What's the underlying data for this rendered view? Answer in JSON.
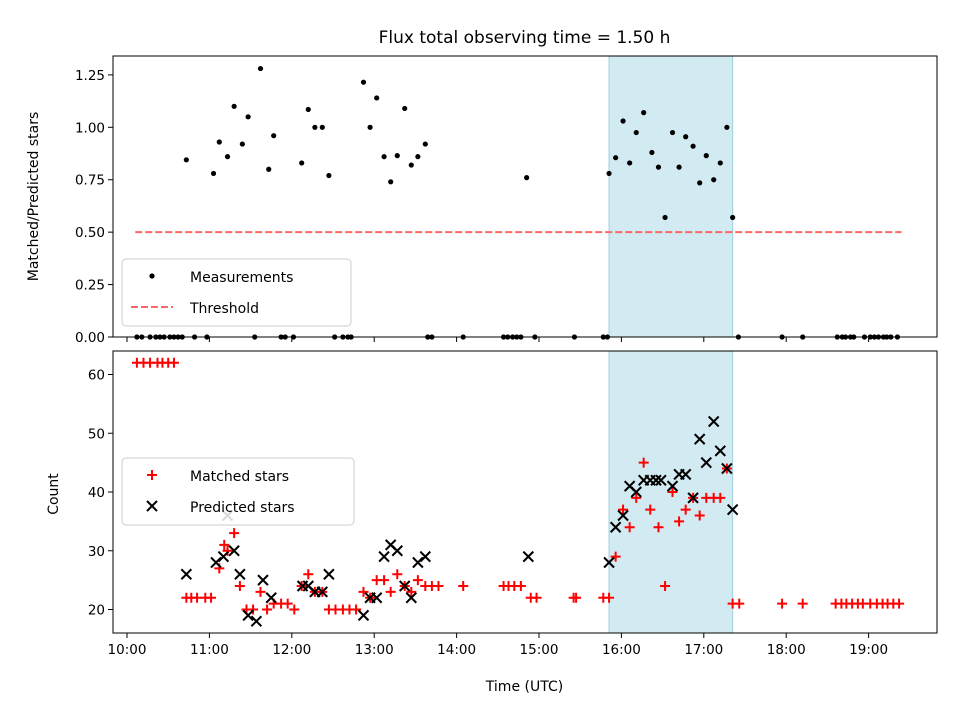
{
  "chart_data": [
    {
      "type": "scatter",
      "title": "Flux total observing time = 1.50 h",
      "xlabel": "",
      "ylabel": "Matched/Predicted stars",
      "xlim": [
        9.83,
        19.83
      ],
      "ylim": [
        0,
        1.34
      ],
      "xticks": [
        10,
        11,
        12,
        13,
        14,
        15,
        16,
        17,
        18,
        19
      ],
      "yticks": [
        0.0,
        0.25,
        0.5,
        0.75,
        1.0,
        1.25
      ],
      "ytick_labels": [
        "0.00",
        "0.25",
        "0.50",
        "0.75",
        "1.00",
        "1.25"
      ],
      "highlight_span": {
        "x0": 15.85,
        "x1": 17.35,
        "color": "#add8e6"
      },
      "legend": {
        "position": "lower-left",
        "entries": [
          "Measurements",
          "Threshold"
        ]
      },
      "threshold": {
        "name": "Threshold",
        "y": 0.5,
        "x": [
          10.1,
          19.4
        ],
        "color": "#ff6666"
      },
      "measurements": {
        "name": "Measurements",
        "color": "#000000",
        "x": [
          10.72,
          11.05,
          11.12,
          11.22,
          11.3,
          11.4,
          11.47,
          11.62,
          11.72,
          11.78,
          12.12,
          12.2,
          12.28,
          12.37,
          12.45,
          12.87,
          12.95,
          13.03,
          13.12,
          13.2,
          13.28,
          13.37,
          13.45,
          13.53,
          13.62,
          14.85,
          15.85,
          15.93,
          16.02,
          16.1,
          16.18,
          16.27,
          16.37,
          16.45,
          16.53,
          16.62,
          16.7,
          16.78,
          16.87,
          16.95,
          17.03,
          17.12,
          17.2,
          17.28,
          17.35
        ],
        "y": [
          0.845,
          0.78,
          0.93,
          0.86,
          1.1,
          0.92,
          1.05,
          1.28,
          0.8,
          0.96,
          0.83,
          1.085,
          1.0,
          1.0,
          0.77,
          1.215,
          1.0,
          1.14,
          0.86,
          0.74,
          0.865,
          1.09,
          0.82,
          0.86,
          0.92,
          0.76,
          0.78,
          0.855,
          1.03,
          0.83,
          0.975,
          1.07,
          0.88,
          0.81,
          0.57,
          0.975,
          0.81,
          0.955,
          0.91,
          0.735,
          0.865,
          0.75,
          0.83,
          1.0,
          0.57
        ],
        "zeros_x": [
          10.12,
          10.18,
          10.28,
          10.35,
          10.4,
          10.45,
          10.52,
          10.57,
          10.62,
          10.67,
          10.82,
          10.97,
          11.55,
          11.87,
          11.92,
          12.02,
          12.52,
          12.62,
          12.68,
          12.72,
          13.65,
          13.7,
          14.08,
          14.57,
          14.62,
          14.68,
          14.73,
          14.78,
          14.95,
          15.43,
          15.78,
          15.83,
          17.42,
          17.95,
          18.2,
          18.62,
          18.68,
          18.72,
          18.78,
          18.82,
          18.95,
          19.02,
          19.07,
          19.12,
          19.18,
          19.22,
          19.27,
          19.35
        ]
      }
    },
    {
      "type": "scatter",
      "title": "",
      "xlabel": "Time (UTC)",
      "ylabel": "Count",
      "xlim": [
        9.83,
        19.83
      ],
      "ylim": [
        16,
        64
      ],
      "xticks": [
        10,
        11,
        12,
        13,
        14,
        15,
        16,
        17,
        18,
        19
      ],
      "xtick_labels": [
        "10:00",
        "11:00",
        "12:00",
        "13:00",
        "14:00",
        "15:00",
        "16:00",
        "17:00",
        "18:00",
        "19:00"
      ],
      "yticks": [
        20,
        30,
        40,
        50,
        60
      ],
      "ytick_labels": [
        "20",
        "30",
        "40",
        "50",
        "60"
      ],
      "highlight_span": {
        "x0": 15.85,
        "x1": 17.35,
        "color": "#add8e6"
      },
      "legend": {
        "position": "center-left",
        "entries": [
          "Matched stars",
          "Predicted stars"
        ]
      },
      "series": [
        {
          "name": "Matched stars",
          "marker": "plus",
          "color": "#ff0000",
          "x": [
            10.12,
            10.2,
            10.28,
            10.37,
            10.43,
            10.5,
            10.57,
            10.72,
            10.78,
            10.85,
            10.95,
            11.02,
            11.12,
            11.18,
            11.22,
            11.3,
            11.37,
            11.45,
            11.53,
            11.62,
            11.7,
            11.78,
            11.87,
            11.95,
            12.03,
            12.12,
            12.2,
            12.28,
            12.37,
            12.45,
            12.53,
            12.62,
            12.7,
            12.78,
            12.87,
            12.95,
            13.03,
            13.12,
            13.2,
            13.28,
            13.37,
            13.45,
            13.53,
            13.62,
            13.7,
            13.78,
            14.08,
            14.57,
            14.63,
            14.7,
            14.78,
            14.9,
            14.97,
            15.42,
            15.45,
            15.78,
            15.85,
            15.93,
            16.02,
            16.1,
            16.18,
            16.27,
            16.35,
            16.45,
            16.53,
            16.62,
            16.7,
            16.78,
            16.87,
            16.95,
            17.03,
            17.12,
            17.2,
            17.28,
            17.35,
            17.43,
            17.95,
            18.2,
            18.6,
            18.67,
            18.73,
            18.8,
            18.87,
            18.93,
            19.02,
            19.1,
            19.17,
            19.23,
            19.3,
            19.37
          ],
          "y": [
            62,
            62,
            62,
            62,
            62,
            62,
            62,
            22,
            22,
            22,
            22,
            22,
            27,
            31,
            30,
            33,
            24,
            20,
            20,
            23,
            20,
            21,
            21,
            21,
            20,
            24,
            26,
            23,
            23,
            20,
            20,
            20,
            20,
            20,
            23,
            22,
            25,
            25,
            23,
            26,
            24,
            23,
            25,
            24,
            24,
            24,
            24,
            24,
            24,
            24,
            24,
            22,
            22,
            22,
            22,
            22,
            22,
            29,
            37,
            34,
            39,
            45,
            37,
            34,
            24,
            40,
            35,
            37,
            39,
            36,
            39,
            39,
            39,
            44,
            21,
            21,
            21,
            21,
            21,
            21,
            21,
            21,
            21,
            21,
            21,
            21,
            21,
            21,
            21,
            21
          ]
        },
        {
          "name": "Predicted stars",
          "marker": "x",
          "color": "#000000",
          "x": [
            10.72,
            11.08,
            11.17,
            11.22,
            11.3,
            11.37,
            11.47,
            11.57,
            11.65,
            11.75,
            12.13,
            12.2,
            12.28,
            12.37,
            12.45,
            12.87,
            12.95,
            13.03,
            13.12,
            13.2,
            13.28,
            13.37,
            13.45,
            13.53,
            13.62,
            14.87,
            15.85,
            15.93,
            16.02,
            16.1,
            16.18,
            16.27,
            16.35,
            16.42,
            16.48,
            16.62,
            16.7,
            16.78,
            16.87,
            16.95,
            17.03,
            17.12,
            17.2,
            17.28,
            17.35
          ],
          "y": [
            26,
            28,
            29,
            36,
            30,
            26,
            19,
            18,
            25,
            22,
            24,
            24,
            23,
            23,
            26,
            19,
            22,
            22,
            29,
            31,
            30,
            24,
            22,
            28,
            29,
            29,
            28,
            34,
            36,
            41,
            40,
            42,
            42,
            42,
            42,
            41,
            43,
            43,
            39,
            49,
            45,
            52,
            47,
            44,
            37
          ]
        }
      ]
    }
  ]
}
